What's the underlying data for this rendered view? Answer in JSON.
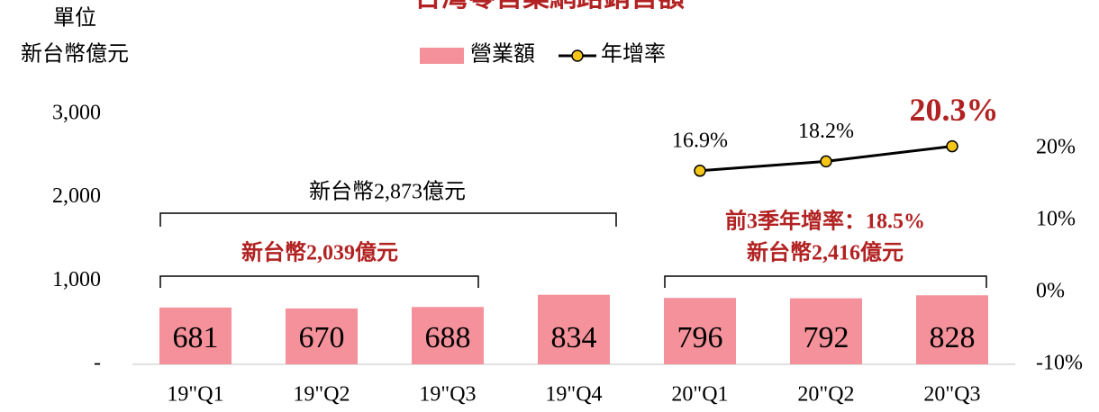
{
  "chart_data": {
    "type": "bar_line",
    "title": "台灣零售業網路銷售額",
    "unit_label": [
      "單位",
      "新台幣億元"
    ],
    "categories": [
      "19\"Q1",
      "19\"Q2",
      "19\"Q3",
      "19\"Q4",
      "20\"Q1",
      "20\"Q2",
      "20\"Q3"
    ],
    "series": [
      {
        "name": "營業額",
        "color": "#f4919a",
        "values": [
          681,
          670,
          688,
          834,
          796,
          792,
          828
        ]
      },
      {
        "name": "年增率",
        "color": "#000000",
        "marker_color": "#f5c518",
        "axis": "y2",
        "values": [
          null,
          null,
          null,
          null,
          16.9,
          18.2,
          20.3
        ],
        "value_labels": [
          null,
          null,
          null,
          null,
          "16.9%",
          "18.2%",
          "20.3%"
        ]
      }
    ],
    "ylim": [
      0,
      3000
    ],
    "yticks": [
      {
        "value": 0,
        "label": "-"
      },
      {
        "value": 1000,
        "label": "1,000"
      },
      {
        "value": 2000,
        "label": "2,000"
      },
      {
        "value": 3000,
        "label": "3,000"
      }
    ],
    "y2lim": [
      -10,
      24.75
    ],
    "y2ticks": [
      {
        "value": -10,
        "label": "-10%"
      },
      {
        "value": 0,
        "label": "0%"
      },
      {
        "value": 10,
        "label": "10%"
      },
      {
        "value": 20,
        "label": "20%"
      }
    ],
    "annotations": [
      "新台幣2,873億元",
      "新台幣2,039億元",
      "前3季年增率：18.5%",
      "新台幣2,416億元"
    ]
  }
}
